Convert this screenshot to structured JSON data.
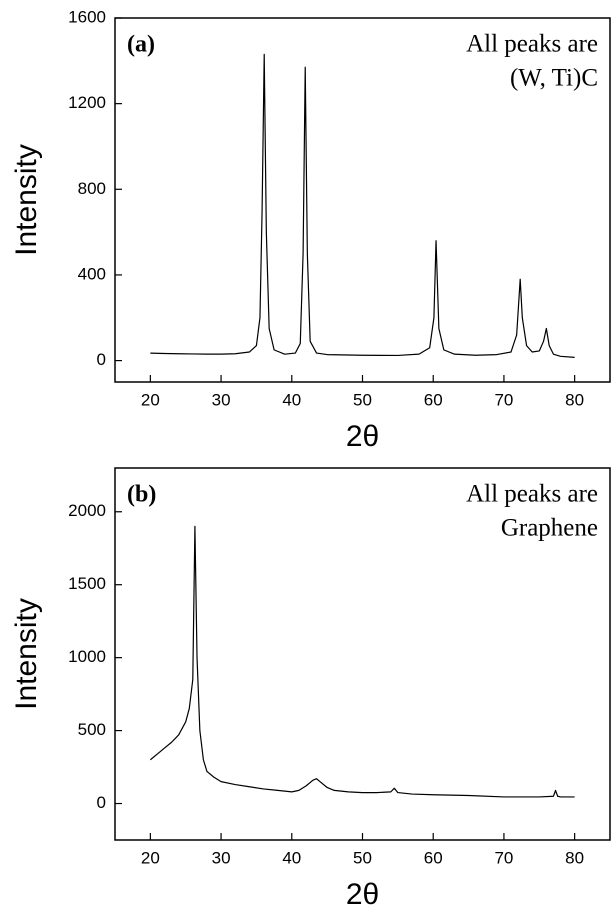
{
  "chart_data": [
    {
      "type": "line",
      "panel_label": "(a)",
      "annotation": [
        "All peaks are",
        "(W, Ti)C"
      ],
      "x_label": "2θ",
      "y_label": "Intensity",
      "xlim": [
        15,
        85
      ],
      "xticks": [
        20,
        30,
        40,
        50,
        60,
        70,
        80
      ],
      "ylim": [
        -100,
        1600
      ],
      "yticks": [
        0,
        400,
        800,
        1200,
        1600
      ],
      "series": [
        {
          "color": "#000000",
          "x": [
            20,
            22,
            24,
            26,
            28,
            30,
            32,
            34,
            35,
            35.5,
            35.8,
            36.1,
            36.4,
            36.8,
            37.5,
            39,
            40.5,
            41.2,
            41.6,
            41.9,
            42.2,
            42.6,
            43.5,
            45,
            50,
            55,
            58,
            59.5,
            60.1,
            60.4,
            60.8,
            61.5,
            63,
            66,
            69,
            71,
            71.8,
            72.3,
            72.6,
            73.2,
            74,
            75,
            75.6,
            76,
            76.4,
            77,
            78,
            80
          ],
          "values": [
            35,
            33,
            32,
            31,
            30,
            30,
            32,
            40,
            70,
            200,
            700,
            1430,
            600,
            150,
            50,
            30,
            35,
            80,
            500,
            1370,
            500,
            90,
            35,
            28,
            25,
            24,
            30,
            60,
            200,
            560,
            150,
            50,
            30,
            25,
            28,
            40,
            120,
            380,
            200,
            70,
            40,
            45,
            90,
            150,
            70,
            30,
            20,
            15
          ]
        }
      ]
    },
    {
      "type": "line",
      "panel_label": "(b)",
      "annotation": [
        "All peaks are",
        "Graphene"
      ],
      "x_label": "2θ",
      "y_label": "Intensity",
      "xlim": [
        15,
        85
      ],
      "xticks": [
        20,
        30,
        40,
        50,
        60,
        70,
        80
      ],
      "ylim": [
        -250,
        2300
      ],
      "yticks": [
        0,
        500,
        1000,
        1500,
        2000
      ],
      "series": [
        {
          "color": "#000000",
          "x": [
            20,
            21,
            22,
            23,
            24,
            25,
            25.5,
            26,
            26.3,
            26.6,
            27,
            27.5,
            28,
            29,
            30,
            32,
            34,
            36,
            38,
            40,
            41,
            42,
            43,
            43.5,
            44,
            45,
            46,
            48,
            50,
            52,
            54,
            54.5,
            55,
            57,
            60,
            65,
            70,
            75,
            77,
            77.3,
            77.6,
            78,
            80
          ],
          "values": [
            300,
            340,
            380,
            420,
            470,
            560,
            650,
            850,
            1900,
            1000,
            500,
            300,
            220,
            180,
            150,
            130,
            115,
            100,
            90,
            80,
            90,
            120,
            160,
            170,
            150,
            110,
            90,
            80,
            75,
            75,
            80,
            105,
            75,
            65,
            60,
            55,
            45,
            45,
            50,
            90,
            50,
            45,
            45
          ]
        }
      ]
    }
  ]
}
